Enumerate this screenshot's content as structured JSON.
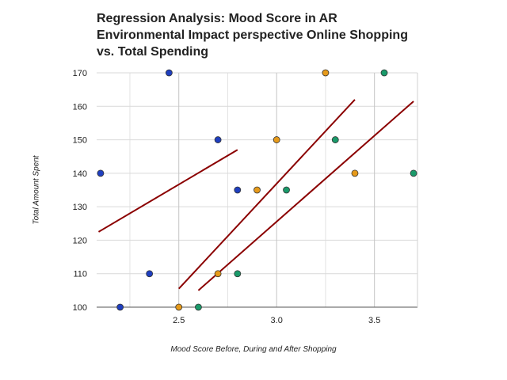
{
  "chart_data": {
    "type": "scatter",
    "title": [
      "Regression Analysis: Mood Score  in  AR",
      "Environmental Impact perspective Online Shopping",
      "vs. Total Spending"
    ],
    "xlabel": "Mood Score Before, During and After Shopping",
    "ylabel": "Total Amount Spent",
    "xlim": [
      2.08,
      3.72
    ],
    "ylim": [
      100,
      170
    ],
    "xticks": [
      2.5,
      3.0,
      3.5
    ],
    "xtick_labels": [
      "2.5",
      "3.0",
      "3.5"
    ],
    "yticks": [
      100,
      110,
      120,
      130,
      140,
      150,
      160,
      170
    ],
    "ytick_labels": [
      "100",
      "110",
      "120",
      "130",
      "140",
      "150",
      "160",
      "170"
    ],
    "grid": true,
    "legend": "none",
    "series": [
      {
        "color": "#1f3fbf",
        "points": [
          [
            2.1,
            140
          ],
          [
            2.2,
            100
          ],
          [
            2.35,
            110
          ],
          [
            2.45,
            170
          ],
          [
            2.7,
            150
          ],
          [
            2.8,
            135
          ]
        ],
        "trend": [
          [
            2.09,
            122.5
          ],
          [
            2.8,
            147
          ]
        ]
      },
      {
        "color": "#e69a1a",
        "points": [
          [
            2.5,
            100
          ],
          [
            2.7,
            110
          ],
          [
            2.9,
            135
          ],
          [
            3.0,
            150
          ],
          [
            3.25,
            170
          ],
          [
            3.4,
            140
          ]
        ],
        "trend": [
          [
            2.5,
            105.5
          ],
          [
            3.4,
            162
          ]
        ]
      },
      {
        "color": "#1a9a6a",
        "points": [
          [
            2.6,
            100
          ],
          [
            2.8,
            110
          ],
          [
            3.05,
            135
          ],
          [
            3.3,
            150
          ],
          [
            3.55,
            170
          ],
          [
            3.7,
            140
          ]
        ],
        "trend": [
          [
            2.6,
            105
          ],
          [
            3.7,
            161.5
          ]
        ]
      }
    ],
    "trend_color": "#8b0000"
  }
}
